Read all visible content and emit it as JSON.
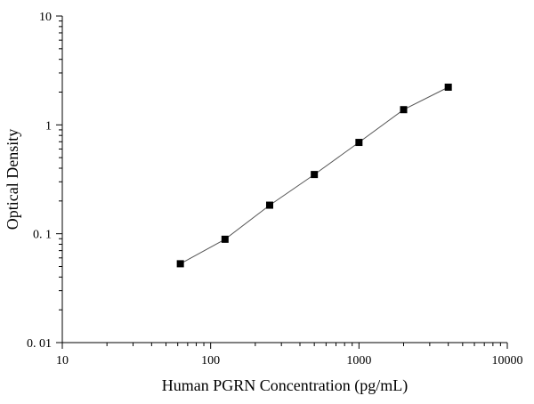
{
  "chart_data": {
    "type": "scatter",
    "title": "",
    "xlabel": "Human PGRN Concentration (pg/mL)",
    "ylabel": "Optical Density",
    "xscale": "log",
    "yscale": "log",
    "xlim": [
      10,
      10000
    ],
    "ylim": [
      0.01,
      10
    ],
    "grid": false,
    "legend": "none",
    "x_ticks": [
      {
        "value": 10,
        "label": "10"
      },
      {
        "value": 100,
        "label": "100"
      },
      {
        "value": 1000,
        "label": "1000"
      },
      {
        "value": 10000,
        "label": "10000"
      }
    ],
    "y_ticks": [
      {
        "value": 0.01,
        "label": "0. 01"
      },
      {
        "value": 0.1,
        "label": "0. 1"
      },
      {
        "value": 1,
        "label": "1"
      },
      {
        "value": 10,
        "label": "10"
      }
    ],
    "series": [
      {
        "marker": "square",
        "color": "#000000",
        "line_color": "#555555",
        "connected": true,
        "x": [
          62.5,
          125,
          250,
          500,
          1000,
          2000,
          4000
        ],
        "y": [
          0.053,
          0.089,
          0.183,
          0.35,
          0.69,
          1.38,
          2.22
        ]
      }
    ]
  }
}
